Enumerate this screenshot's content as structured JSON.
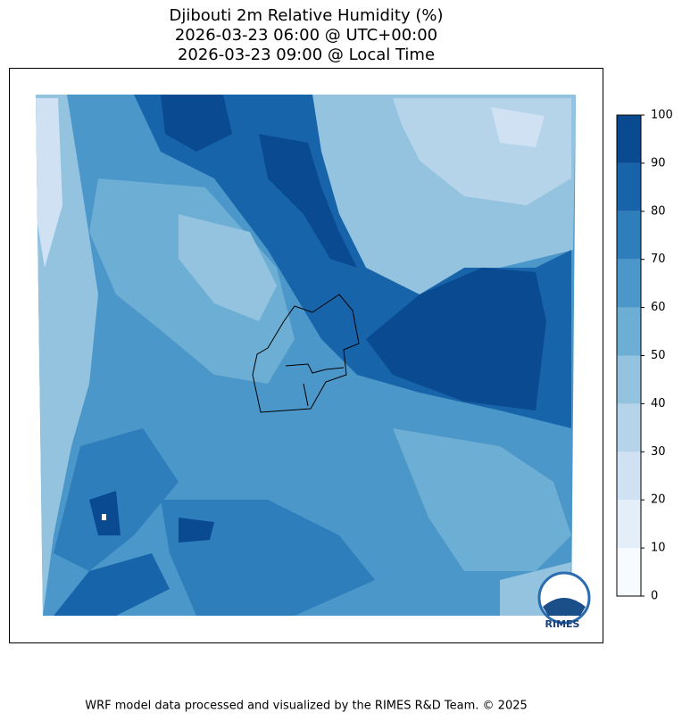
{
  "title": [
    "Djibouti 2m Relative Humidity (%)",
    "2026-03-23 06:00 @ UTC+00:00",
    "2026-03-23 09:00 @ Local Time"
  ],
  "colorbar": {
    "ticks": [
      0,
      10,
      20,
      30,
      40,
      50,
      60,
      70,
      80,
      90,
      100
    ],
    "colors": [
      "#f7fbff",
      "#e3eef9",
      "#cfe1f2",
      "#b5d4e9",
      "#93c3df",
      "#6daed5",
      "#4b97c9",
      "#2f7ebc",
      "#1864aa",
      "#0a4a90"
    ]
  },
  "logo": "RIMES",
  "footer": "WRF model data processed and visualized by the RIMES R&D Team. © 2025"
}
